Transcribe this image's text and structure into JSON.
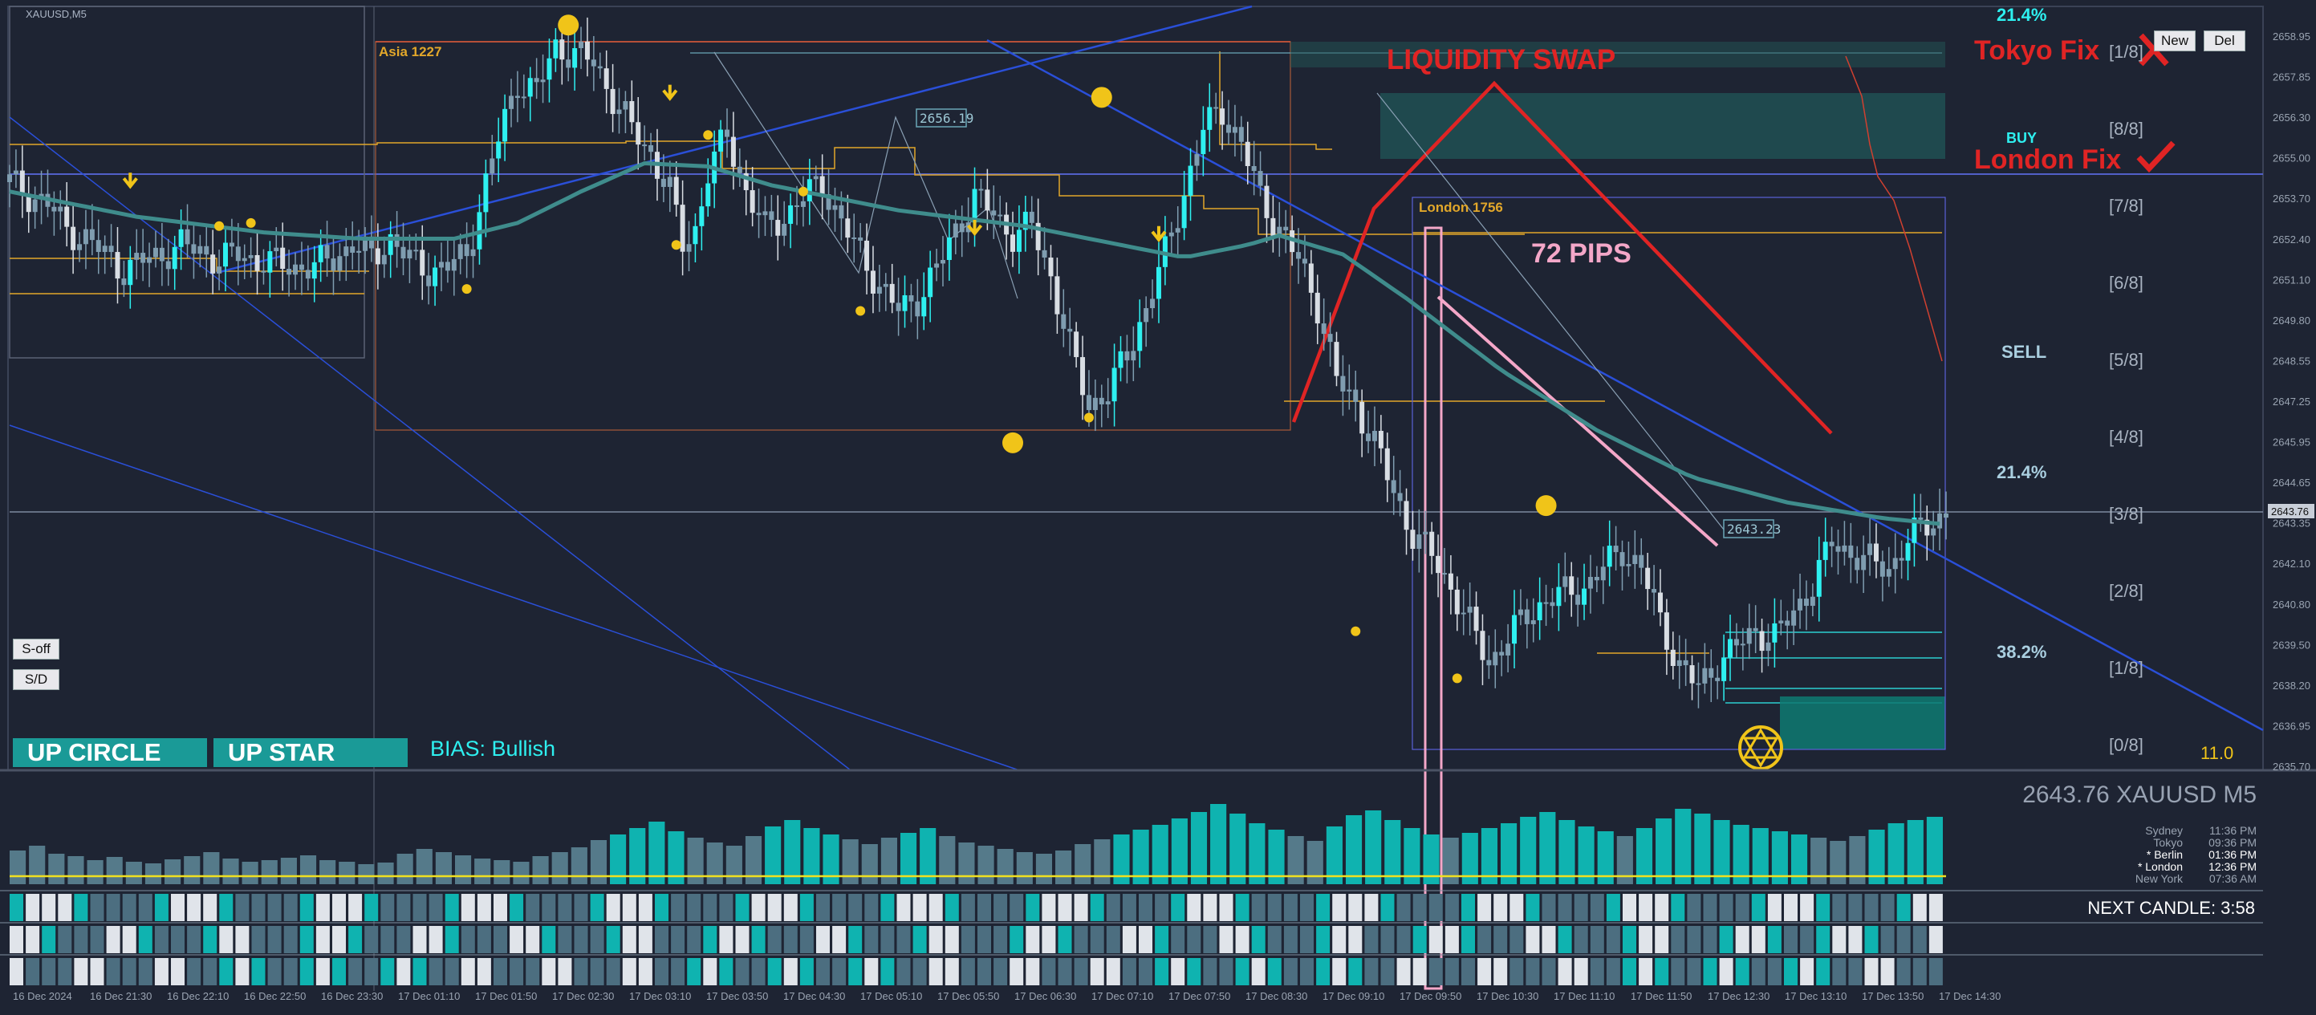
{
  "chart_data": {
    "type": "candlestick",
    "symbol_tag": "XAUUSD,M5",
    "y_axis_labels": [
      "2658.95",
      "2657.85",
      "2656.30",
      "2655.00",
      "2653.70",
      "2652.40",
      "2651.10",
      "2649.80",
      "2648.55",
      "2647.25",
      "2645.95",
      "2644.65",
      "2643.35",
      "2642.10",
      "2640.80",
      "2639.50",
      "2638.20",
      "2636.95",
      "2635.70"
    ],
    "ylim": [
      2635.7,
      2658.95
    ],
    "current_price": "2643.76",
    "x_tick_labels": [
      "16 Dec 2024",
      "16 Dec 21:30",
      "16 Dec 22:10",
      "16 Dec 22:50",
      "16 Dec 23:30",
      "17 Dec 01:10",
      "17 Dec 01:50",
      "17 Dec 02:30",
      "17 Dec 03:10",
      "17 Dec 03:50",
      "17 Dec 04:30",
      "17 Dec 05:10",
      "17 Dec 05:50",
      "17 Dec 06:30",
      "17 Dec 07:10",
      "17 Dec 07:50",
      "17 Dec 08:30",
      "17 Dec 09:10",
      "17 Dec 09:50",
      "17 Dec 10:30",
      "17 Dec 11:10",
      "17 Dec 11:50",
      "17 Dec 12:30",
      "17 Dec 13:10",
      "17 Dec 13:50",
      "17 Dec 14:30"
    ],
    "close_path": [
      [
        0,
        2654.3
      ],
      [
        3,
        2653.9
      ],
      [
        6,
        2653.6
      ],
      [
        9,
        2652.8
      ],
      [
        12,
        2652.5
      ],
      [
        15,
        2652.0
      ],
      [
        18,
        2651.5
      ],
      [
        21,
        2651.8
      ],
      [
        24,
        2652.0
      ],
      [
        27,
        2652.3
      ],
      [
        30,
        2652.1
      ],
      [
        33,
        2651.8
      ],
      [
        36,
        2652.0
      ],
      [
        39,
        2651.8
      ],
      [
        42,
        2651.7
      ],
      [
        45,
        2651.6
      ],
      [
        48,
        2651.6
      ],
      [
        51,
        2651.9
      ],
      [
        54,
        2652.3
      ],
      [
        57,
        2651.9
      ],
      [
        60,
        2652.5
      ],
      [
        63,
        2651.8
      ],
      [
        66,
        2651.5
      ],
      [
        69,
        2651.6
      ],
      [
        72,
        2652.0
      ],
      [
        74,
        2653.5
      ],
      [
        76,
        2655.0
      ],
      [
        78,
        2656.3
      ],
      [
        80,
        2657.5
      ],
      [
        83,
        2657.2
      ],
      [
        86,
        2658.6
      ],
      [
        89,
        2658.4
      ],
      [
        92,
        2658.1
      ],
      [
        95,
        2657.0
      ],
      [
        98,
        2656.0
      ],
      [
        101,
        2655.2
      ],
      [
        104,
        2654.0
      ],
      [
        106,
        2652.3
      ],
      [
        108,
        2652.8
      ],
      [
        110,
        2654.6
      ],
      [
        113,
        2655.8
      ],
      [
        116,
        2654.0
      ],
      [
        119,
        2652.8
      ],
      [
        122,
        2653.2
      ],
      [
        125,
        2653.8
      ],
      [
        128,
        2654.3
      ],
      [
        131,
        2653.0
      ],
      [
        134,
        2652.0
      ],
      [
        137,
        2651.0
      ],
      [
        140,
        2650.2
      ],
      [
        143,
        2650.6
      ],
      [
        146,
        2651.5
      ],
      [
        149,
        2652.8
      ],
      [
        152,
        2653.8
      ],
      [
        155,
        2653.3
      ],
      [
        158,
        2652.6
      ],
      [
        161,
        2652.9
      ],
      [
        164,
        2651.3
      ],
      [
        167,
        2649.0
      ],
      [
        170,
        2647.2
      ],
      [
        173,
        2647.6
      ],
      [
        176,
        2648.8
      ],
      [
        179,
        2650.3
      ],
      [
        182,
        2652.0
      ],
      [
        185,
        2654.0
      ],
      [
        188,
        2656.0
      ],
      [
        191,
        2656.6
      ],
      [
        194,
        2655.5
      ],
      [
        197,
        2653.8
      ],
      [
        200,
        2652.8
      ],
      [
        203,
        2651.8
      ],
      [
        206,
        2650.4
      ],
      [
        209,
        2648.0
      ],
      [
        212,
        2647.2
      ],
      [
        215,
        2646.0
      ],
      [
        218,
        2644.4
      ],
      [
        221,
        2643.1
      ],
      [
        224,
        2642.4
      ],
      [
        227,
        2641.4
      ],
      [
        230,
        2640.2
      ],
      [
        233,
        2639.0
      ],
      [
        236,
        2639.8
      ],
      [
        239,
        2640.5
      ],
      [
        242,
        2641.0
      ],
      [
        245,
        2641.2
      ],
      [
        248,
        2641.4
      ],
      [
        251,
        2642.0
      ],
      [
        254,
        2642.6
      ],
      [
        257,
        2642.0
      ],
      [
        260,
        2640.3
      ],
      [
        263,
        2638.9
      ],
      [
        266,
        2638.2
      ],
      [
        269,
        2639.0
      ],
      [
        272,
        2639.5
      ],
      [
        275,
        2640.0
      ],
      [
        278,
        2639.8
      ],
      [
        281,
        2640.6
      ],
      [
        284,
        2641.5
      ],
      [
        287,
        2642.8
      ],
      [
        290,
        2642.5
      ],
      [
        293,
        2642.2
      ],
      [
        296,
        2642.0
      ],
      [
        299,
        2642.9
      ],
      [
        302,
        2643.4
      ],
      [
        305,
        2643.76
      ]
    ],
    "ema_path": [
      [
        0,
        2654.0
      ],
      [
        20,
        2653.2
      ],
      [
        40,
        2652.7
      ],
      [
        55,
        2652.5
      ],
      [
        70,
        2652.5
      ],
      [
        80,
        2653.0
      ],
      [
        90,
        2654.0
      ],
      [
        100,
        2654.9
      ],
      [
        110,
        2654.8
      ],
      [
        120,
        2654.2
      ],
      [
        140,
        2653.4
      ],
      [
        160,
        2652.9
      ],
      [
        175,
        2652.3
      ],
      [
        185,
        2651.9
      ],
      [
        195,
        2652.3
      ],
      [
        200,
        2652.6
      ],
      [
        210,
        2652.0
      ],
      [
        220,
        2650.6
      ],
      [
        235,
        2648.3
      ],
      [
        250,
        2646.4
      ],
      [
        265,
        2644.9
      ],
      [
        280,
        2644.1
      ],
      [
        295,
        2643.6
      ],
      [
        305,
        2643.4
      ]
    ],
    "volume_hist": [
      42,
      48,
      38,
      35,
      30,
      34,
      28,
      26,
      31,
      35,
      40,
      32,
      28,
      30,
      33,
      36,
      30,
      28,
      25,
      27,
      38,
      44,
      40,
      36,
      32,
      30,
      28,
      35,
      40,
      46,
      55,
      62,
      70,
      78,
      66,
      58,
      52,
      48,
      60,
      72,
      80,
      70,
      62,
      56,
      50,
      58,
      64,
      70,
      60,
      52,
      48,
      44,
      40,
      38,
      42,
      50,
      56,
      62,
      68,
      74,
      82,
      90,
      100,
      88,
      76,
      68,
      60,
      54,
      72,
      86,
      92,
      80,
      70,
      62,
      58,
      64,
      70,
      76,
      84,
      90,
      80,
      72,
      66,
      60,
      70,
      82,
      94,
      88,
      80,
      74,
      70,
      66,
      62,
      58,
      54,
      60,
      68,
      76,
      80,
      84
    ],
    "fib_labels": [
      "21.4%",
      "BUY",
      "SELL",
      "21.4%",
      "38.2%"
    ],
    "fib_levels": [
      "[1/8]",
      "[8/8]",
      "[7/8]",
      "[6/8]",
      "[5/8]",
      "[4/8]",
      "[3/8]",
      "[2/8]",
      "[1/8]",
      "[0/8]"
    ],
    "annotations": {
      "asia": "Asia 1227",
      "london": "London 1756",
      "liquidity": "LIQUIDITY SWAP",
      "pips": "72 PIPS",
      "tokyo_fix": "Tokyo Fix",
      "london_fix": "London Fix",
      "price_tag_a": "2656.19",
      "price_tag_b": "2643.23",
      "value_11": "11.0"
    }
  },
  "buttons": {
    "sd_off": "S-off",
    "sd": "S/D",
    "new": "New",
    "del": "Del"
  },
  "banners": {
    "up_circle": "UP CIRCLE",
    "up_star": "UP STAR",
    "bias": "BIAS: Bullish"
  },
  "info_panel": {
    "headline": "2643.76 XAUUSD M5",
    "sessions": [
      {
        "city": "Sydney",
        "time": "11:36 PM"
      },
      {
        "city": "Tokyo",
        "time": "09:36 PM"
      },
      {
        "city": "* Berlin",
        "time": "01:36 PM"
      },
      {
        "city": "* London",
        "time": "12:36 PM"
      },
      {
        "city": "New York",
        "time": "07:36 AM"
      }
    ],
    "next_candle": "NEXT CANDLE: 3:58"
  },
  "colors": {
    "bg": "#1e2433",
    "bull": "#2ef0f0",
    "bear": "#d8dde3",
    "ema": "#3f8c8c",
    "accent_red": "#e02424",
    "pink": "#f4a7c8",
    "gold": "#f0c419",
    "blue": "#2a4fd8"
  }
}
